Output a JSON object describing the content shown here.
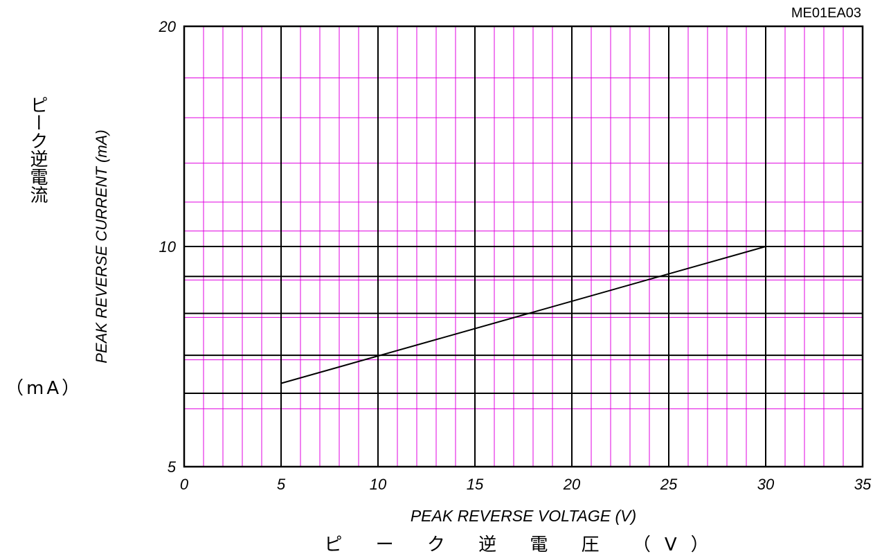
{
  "figure_code": "ME01EA03",
  "chart_data": {
    "type": "line",
    "xlabel": "PEAK REVERSE VOLTAGE (V)",
    "xlabel_jp": "ピ ー ク 逆 電 圧 （V）",
    "ylabel": "PEAK REVERSE CURRENT (mA)",
    "ylabel_jp": "ピーク逆電流",
    "ylabel_jp_unit": "（mA）",
    "x_scale": "linear",
    "y_scale": "log",
    "xlim": [
      0,
      35
    ],
    "ylim": [
      5,
      20
    ],
    "x_ticks": [
      "0",
      "5",
      "10",
      "15",
      "20",
      "25",
      "30",
      "35"
    ],
    "y_ticks": [
      "5",
      "10",
      "20"
    ],
    "grid": true,
    "colors": {
      "minor_grid": "#e000e0",
      "major_grid": "#000000",
      "line": "#000000"
    },
    "series": [
      {
        "x": [
          5,
          30
        ],
        "y": [
          6.5,
          10
        ]
      }
    ]
  }
}
